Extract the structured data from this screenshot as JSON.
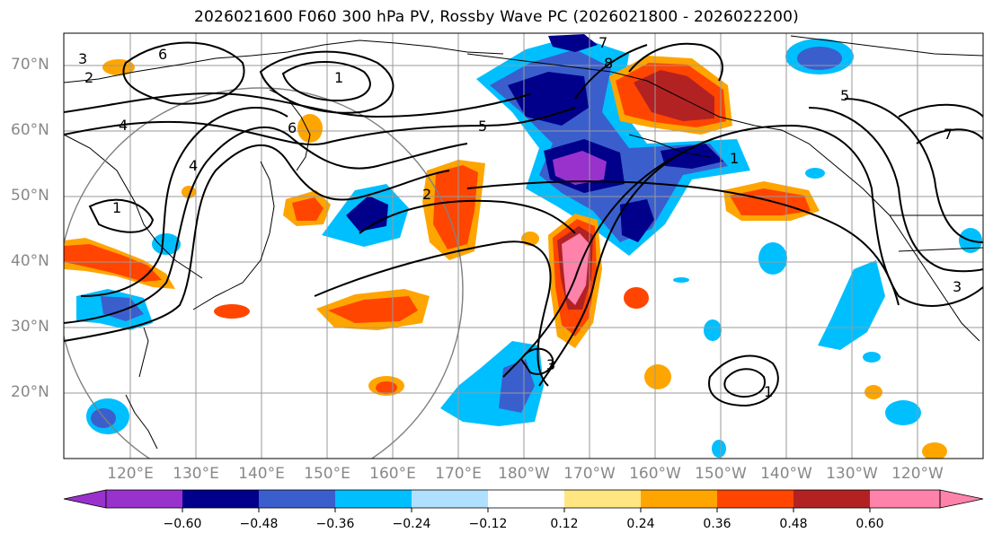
{
  "title": "2026021600 F060 300 hPa PV, Rossby Wave PC (2026021800 - 2026022200)",
  "map": {
    "lat_labels": [
      "70°N",
      "60°N",
      "50°N",
      "40°N",
      "30°N",
      "20°N"
    ],
    "lon_labels": [
      "120°E",
      "130°E",
      "140°E",
      "150°E",
      "160°E",
      "170°E",
      "180°W",
      "170°W",
      "160°W",
      "150°W",
      "140°W",
      "130°W",
      "120°W"
    ],
    "contour_labels": [
      "1",
      "2",
      "3",
      "4",
      "5",
      "6",
      "7",
      "8"
    ]
  },
  "colorbar": {
    "ticks": [
      "−0.60",
      "−0.48",
      "−0.36",
      "−0.24",
      "−0.12",
      "0.12",
      "0.24",
      "0.36",
      "0.48",
      "0.60"
    ],
    "colors": [
      "#9932cc",
      "#00008b",
      "#3a5fcd",
      "#00bfff",
      "#b0e0ff",
      "#ffffff",
      "#ffe680",
      "#ffa500",
      "#ff4500",
      "#b22222",
      "#ff82ab"
    ]
  }
}
